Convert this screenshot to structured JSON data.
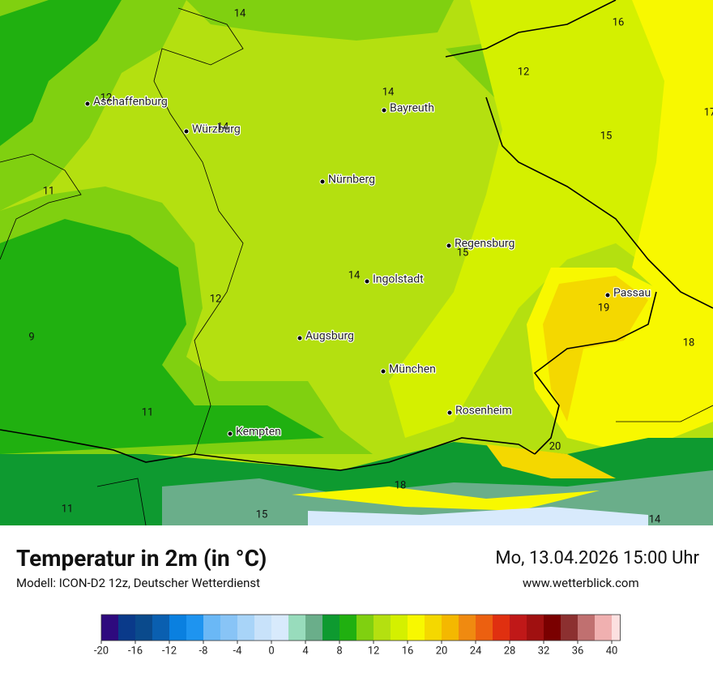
{
  "header": {
    "title": "Temperatur in 2m (in °C)",
    "subtitle": "Modell: ICON-D2 12z, Deutscher Wetterdienst",
    "datetime": "Mo, 13.04.2026 15:00 Uhr",
    "website": "www.wetterblick.com"
  },
  "map": {
    "cities": [
      "Aschaffenburg",
      "Würzburg",
      "Bayreuth",
      "Nürnberg",
      "Regensburg",
      "Ingolstadt",
      "Passau",
      "Augsburg",
      "München",
      "Rosenheim",
      "Kempten"
    ],
    "values": [
      14,
      16,
      12,
      12,
      14,
      14,
      15,
      17,
      11,
      15,
      14,
      12,
      19,
      9,
      18,
      11,
      20,
      18,
      11,
      15,
      14
    ]
  },
  "legend": {
    "range": [
      -20,
      40
    ],
    "ticks": [
      -20,
      -16,
      -12,
      -8,
      -4,
      0,
      4,
      8,
      12,
      16,
      20,
      24,
      28,
      32,
      36,
      40
    ],
    "colors": [
      "#2e0a7e",
      "#0a3a8a",
      "#0a4a8c",
      "#0a5fb0",
      "#0a80e0",
      "#1e94f0",
      "#6ab8f6",
      "#88c4f6",
      "#a8d4f8",
      "#c8e2fa",
      "#d8eafc",
      "#98dcbc",
      "#6aae8a",
      "#0e9a30",
      "#20b010",
      "#80d010",
      "#b4e010",
      "#d4f000",
      "#f8f800",
      "#f4d800",
      "#f4b800",
      "#f08a10",
      "#ec6010",
      "#e03010",
      "#c01818",
      "#a01010",
      "#7a0000",
      "#8c3030",
      "#c07070",
      "#f0b0b0",
      "#fce0e0"
    ]
  }
}
